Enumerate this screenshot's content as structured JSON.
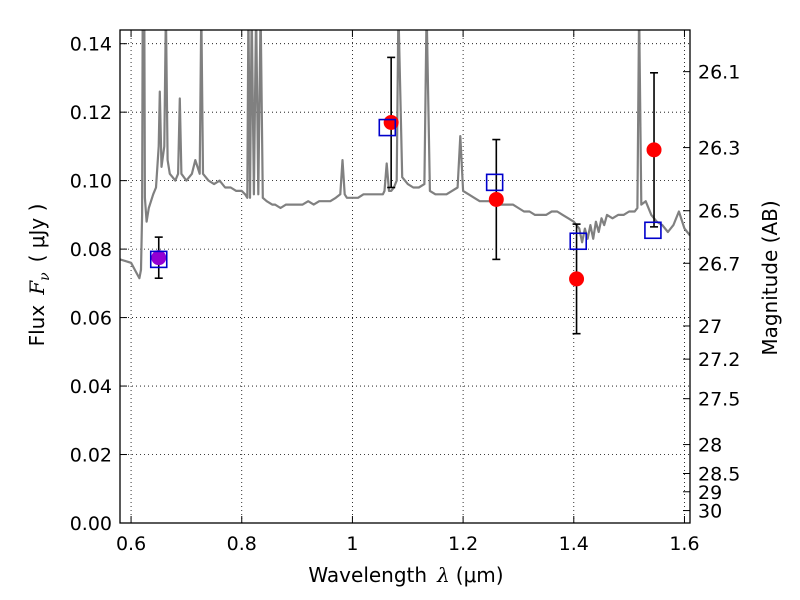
{
  "chart_data": {
    "type": "scatter",
    "xlabel_prefix": "Wavelength",
    "xlabel_symbol": "λ",
    "xlabel_unit": "(μm)",
    "ylabel_prefix": "Flux",
    "ylabel_symbol": "F",
    "ylabel_subscript": "ν",
    "ylabel_unit": "( μJy )",
    "y2label": "Magnitude (AB)",
    "xlim": [
      0.58,
      1.61
    ],
    "ylim": [
      0.0,
      0.144
    ],
    "grid": true,
    "x_ticks": [
      0.6,
      0.8,
      1.0,
      1.2,
      1.4,
      1.6
    ],
    "x_tick_labels": [
      "0.6",
      "0.8",
      "1",
      "1.2",
      "1.4",
      "1.6"
    ],
    "y_ticks": [
      0.0,
      0.02,
      0.04,
      0.06,
      0.08,
      0.1,
      0.12,
      0.14
    ],
    "y_tick_labels": [
      "0.00",
      "0.02",
      "0.04",
      "0.06",
      "0.08",
      "0.10",
      "0.12",
      "0.14"
    ],
    "mag_ticks": [
      26.1,
      26.3,
      26.5,
      26.7,
      27,
      27.2,
      27.5,
      28,
      28.5,
      29,
      30
    ],
    "mag_tick_labels": [
      "26.1",
      "26.3",
      "26.5",
      "26.7",
      "27",
      "27.2",
      "27.5",
      "28",
      "28.5",
      "29",
      "30"
    ],
    "colors": {
      "spectrum": "#808080",
      "observed": "#ff0000",
      "model": "#0000cc",
      "blend": "#9400d3",
      "errorbar": "#000000"
    },
    "series": [
      {
        "kind": "spectrum",
        "points": [
          [
            0.58,
            0.077
          ],
          [
            0.59,
            0.0765
          ],
          [
            0.6,
            0.076
          ],
          [
            0.605,
            0.0745
          ],
          [
            0.61,
            0.073
          ],
          [
            0.615,
            0.0715
          ],
          [
            0.618,
            0.074
          ],
          [
            0.62,
            0.09
          ],
          [
            0.621,
            0.15
          ],
          [
            0.624,
            0.15
          ],
          [
            0.625,
            0.095
          ],
          [
            0.628,
            0.088
          ],
          [
            0.632,
            0.092
          ],
          [
            0.636,
            0.094
          ],
          [
            0.64,
            0.096
          ],
          [
            0.645,
            0.098
          ],
          [
            0.65,
            0.11
          ],
          [
            0.652,
            0.126
          ],
          [
            0.655,
            0.104
          ],
          [
            0.66,
            0.11
          ],
          [
            0.663,
            0.15
          ],
          [
            0.666,
            0.106
          ],
          [
            0.67,
            0.102
          ],
          [
            0.675,
            0.101
          ],
          [
            0.68,
            0.1
          ],
          [
            0.685,
            0.102
          ],
          [
            0.688,
            0.124
          ],
          [
            0.691,
            0.102
          ],
          [
            0.7,
            0.1
          ],
          [
            0.71,
            0.102
          ],
          [
            0.716,
            0.106
          ],
          [
            0.72,
            0.104
          ],
          [
            0.724,
            0.102
          ],
          [
            0.727,
            0.15
          ],
          [
            0.73,
            0.102
          ],
          [
            0.74,
            0.1
          ],
          [
            0.75,
            0.099
          ],
          [
            0.76,
            0.1
          ],
          [
            0.77,
            0.098
          ],
          [
            0.78,
            0.098
          ],
          [
            0.79,
            0.097
          ],
          [
            0.8,
            0.097
          ],
          [
            0.806,
            0.096
          ],
          [
            0.81,
            0.095
          ],
          [
            0.812,
            0.15
          ],
          [
            0.815,
            0.095
          ],
          [
            0.818,
            0.15
          ],
          [
            0.822,
            0.096
          ],
          [
            0.826,
            0.15
          ],
          [
            0.83,
            0.096
          ],
          [
            0.834,
            0.15
          ],
          [
            0.838,
            0.095
          ],
          [
            0.845,
            0.094
          ],
          [
            0.855,
            0.093
          ],
          [
            0.86,
            0.093
          ],
          [
            0.87,
            0.092
          ],
          [
            0.88,
            0.093
          ],
          [
            0.89,
            0.093
          ],
          [
            0.9,
            0.093
          ],
          [
            0.91,
            0.093
          ],
          [
            0.92,
            0.094
          ],
          [
            0.93,
            0.093
          ],
          [
            0.94,
            0.094
          ],
          [
            0.95,
            0.094
          ],
          [
            0.96,
            0.094
          ],
          [
            0.97,
            0.095
          ],
          [
            0.978,
            0.096
          ],
          [
            0.982,
            0.106
          ],
          [
            0.986,
            0.096
          ],
          [
            0.99,
            0.095
          ],
          [
            1.0,
            0.095
          ],
          [
            1.01,
            0.095
          ],
          [
            1.02,
            0.096
          ],
          [
            1.03,
            0.096
          ],
          [
            1.04,
            0.096
          ],
          [
            1.05,
            0.096
          ],
          [
            1.055,
            0.096
          ],
          [
            1.058,
            0.097
          ],
          [
            1.062,
            0.105
          ],
          [
            1.066,
            0.097
          ],
          [
            1.07,
            0.097
          ],
          [
            1.075,
            0.098
          ],
          [
            1.08,
            0.1
          ],
          [
            1.083,
            0.15
          ],
          [
            1.09,
            0.101
          ],
          [
            1.1,
            0.099
          ],
          [
            1.11,
            0.098
          ],
          [
            1.12,
            0.098
          ],
          [
            1.13,
            0.099
          ],
          [
            1.134,
            0.15
          ],
          [
            1.14,
            0.097
          ],
          [
            1.15,
            0.096
          ],
          [
            1.16,
            0.096
          ],
          [
            1.17,
            0.096
          ],
          [
            1.18,
            0.097
          ],
          [
            1.19,
            0.098
          ],
          [
            1.195,
            0.113
          ],
          [
            1.2,
            0.097
          ],
          [
            1.21,
            0.096
          ],
          [
            1.22,
            0.095
          ],
          [
            1.23,
            0.094
          ],
          [
            1.24,
            0.094
          ],
          [
            1.25,
            0.094
          ],
          [
            1.26,
            0.093
          ],
          [
            1.27,
            0.093
          ],
          [
            1.28,
            0.093
          ],
          [
            1.29,
            0.093
          ],
          [
            1.3,
            0.092
          ],
          [
            1.31,
            0.091
          ],
          [
            1.32,
            0.091
          ],
          [
            1.33,
            0.09
          ],
          [
            1.34,
            0.09
          ],
          [
            1.35,
            0.09
          ],
          [
            1.36,
            0.091
          ],
          [
            1.37,
            0.091
          ],
          [
            1.38,
            0.09
          ],
          [
            1.39,
            0.089
          ],
          [
            1.4,
            0.088
          ],
          [
            1.41,
            0.086
          ],
          [
            1.415,
            0.082
          ],
          [
            1.42,
            0.086
          ],
          [
            1.425,
            0.083
          ],
          [
            1.43,
            0.087
          ],
          [
            1.435,
            0.083
          ],
          [
            1.44,
            0.088
          ],
          [
            1.445,
            0.085
          ],
          [
            1.45,
            0.089
          ],
          [
            1.455,
            0.087
          ],
          [
            1.46,
            0.09
          ],
          [
            1.47,
            0.089
          ],
          [
            1.48,
            0.09
          ],
          [
            1.49,
            0.09
          ],
          [
            1.5,
            0.091
          ],
          [
            1.51,
            0.091
          ],
          [
            1.515,
            0.092
          ],
          [
            1.518,
            0.15
          ],
          [
            1.522,
            0.093
          ],
          [
            1.53,
            0.094
          ],
          [
            1.54,
            0.09
          ],
          [
            1.55,
            0.088
          ],
          [
            1.56,
            0.087
          ],
          [
            1.57,
            0.085
          ],
          [
            1.58,
            0.087
          ],
          [
            1.59,
            0.091
          ],
          [
            1.6,
            0.086
          ],
          [
            1.61,
            0.084
          ]
        ]
      },
      {
        "name": "observed",
        "kind": "points-with-errors",
        "points": [
          {
            "x": 0.65,
            "y": 0.0775,
            "yerr": 0.006
          },
          {
            "x": 1.07,
            "y": 0.117,
            "yerr": 0.019
          },
          {
            "x": 1.26,
            "y": 0.0945,
            "yerr": 0.0175
          },
          {
            "x": 1.405,
            "y": 0.0713,
            "yerr": 0.016
          },
          {
            "x": 1.545,
            "y": 0.109,
            "yerr": 0.0225
          }
        ]
      },
      {
        "name": "model",
        "kind": "open-squares",
        "points": [
          {
            "x": 0.65,
            "y": 0.077
          },
          {
            "x": 1.063,
            "y": 0.1155
          },
          {
            "x": 1.257,
            "y": 0.0995
          },
          {
            "x": 1.408,
            "y": 0.0823
          },
          {
            "x": 1.543,
            "y": 0.0855
          }
        ]
      }
    ]
  }
}
